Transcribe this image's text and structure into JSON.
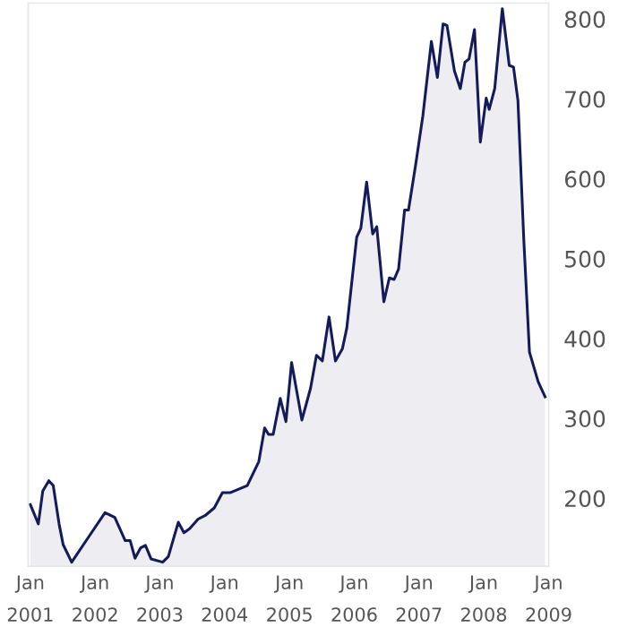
{
  "chart_data": {
    "type": "area",
    "color": "#141a5a",
    "grid": false,
    "marker": "none",
    "line_style": "solid",
    "x": [
      "2001-01-01",
      "2001-02-15",
      "2001-03-12",
      "2001-04-15",
      "2001-05-10",
      "2001-06-12",
      "2001-07-05",
      "2001-08-22",
      "2001-12-15",
      "2002-02-26",
      "2002-04-22",
      "2002-06-20",
      "2002-07-18",
      "2002-08-14",
      "2002-09-15",
      "2002-10-12",
      "2002-11-13",
      "2003-01-17",
      "2003-02-18",
      "2003-04-15",
      "2003-05-17",
      "2003-06-18",
      "2003-08-05",
      "2003-09-17",
      "2003-11-04",
      "2003-12-20",
      "2004-02-01",
      "2004-05-08",
      "2004-07-12",
      "2004-08-14",
      "2004-09-05",
      "2004-10-01",
      "2004-11-10",
      "2004-12-12",
      "2005-01-13",
      "2005-03-12",
      "2005-04-30",
      "2005-06-02",
      "2005-06-12",
      "2005-07-05",
      "2005-08-12",
      "2005-09-17",
      "2005-10-26",
      "2005-11-20",
      "2006-01-15",
      "2006-02-07",
      "2006-03-12",
      "2006-04-15",
      "2006-05-08",
      "2006-06-17",
      "2006-07-18",
      "2006-08-14",
      "2006-09-08",
      "2006-10-12",
      "2006-11-03",
      "2006-12-15",
      "2007-01-23",
      "2007-03-12",
      "2007-04-15",
      "2007-05-17",
      "2007-06-08",
      "2007-07-20",
      "2007-08-22",
      "2007-09-17",
      "2007-10-10",
      "2007-11-10",
      "2007-12-13",
      "2008-01-15",
      "2008-02-01",
      "2008-03-03",
      "2008-04-15",
      "2008-05-24",
      "2008-06-17",
      "2008-07-12",
      "2008-08-14",
      "2008-09-15",
      "2008-11-03",
      "2008-12-12"
    ],
    "values": [
      192,
      168,
      209,
      222,
      216,
      168,
      142,
      120,
      158,
      182,
      176,
      147,
      147,
      125,
      138,
      141,
      124,
      120,
      127,
      170,
      157,
      162,
      174,
      179,
      188,
      207,
      207,
      216,
      246,
      288,
      280,
      280,
      325,
      296,
      370,
      298,
      338,
      379,
      377,
      372,
      427,
      372,
      387,
      413,
      527,
      538,
      596,
      531,
      540,
      446,
      476,
      474,
      487,
      561,
      561,
      620,
      679,
      772,
      727,
      794,
      792,
      735,
      713,
      746,
      750,
      787,
      646,
      701,
      687,
      713,
      813,
      742,
      740,
      698,
      524,
      383,
      346,
      327
    ],
    "xlim": [
      "2000-12-20",
      "2009-01-01"
    ],
    "xticks": [
      {
        "value": "2001-01-01",
        "label": "Jan\n2001"
      },
      {
        "value": "2002-01-01",
        "label": "Jan\n2002"
      },
      {
        "value": "2003-01-01",
        "label": "Jan\n2003"
      },
      {
        "value": "2004-01-01",
        "label": "Jan\n2004"
      },
      {
        "value": "2005-01-01",
        "label": "Jan\n2005"
      },
      {
        "value": "2006-01-01",
        "label": "Jan\n2006"
      },
      {
        "value": "2007-01-01",
        "label": "Jan\n2007"
      },
      {
        "value": "2008-01-01",
        "label": "Jan\n2008"
      },
      {
        "value": "2009-01-01",
        "label": "Jan\n2009"
      }
    ],
    "ylim": [
      115,
      820
    ],
    "yticks": [
      200,
      300,
      400,
      500,
      600,
      700,
      800
    ]
  }
}
